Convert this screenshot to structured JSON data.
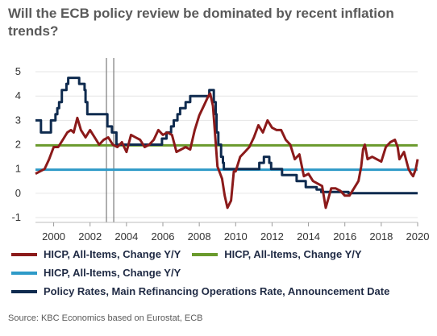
{
  "title": "Will the ECB policy review be dominated by recent inflation trends?",
  "source": "Source: KBC Economics based on Eurostat, ECB",
  "chart_data": {
    "type": "line",
    "xlim": [
      1999.0,
      2020.0
    ],
    "ylim": [
      -1.2,
      5.3
    ],
    "xticks": [
      2000,
      2002,
      2004,
      2006,
      2008,
      2010,
      2012,
      2014,
      2016,
      2018,
      2020
    ],
    "yticks": [
      -1,
      0,
      1,
      2,
      3,
      4,
      5
    ],
    "vlines": [
      2002.9,
      2003.3
    ],
    "series": [
      {
        "name": "HICP, All-Items, Change Y/Y",
        "color": "#8b1a1a",
        "points": [
          [
            1999.0,
            0.8
          ],
          [
            1999.25,
            0.9
          ],
          [
            1999.5,
            1.0
          ],
          [
            1999.75,
            1.4
          ],
          [
            2000.0,
            1.9
          ],
          [
            2000.25,
            1.9
          ],
          [
            2000.5,
            2.2
          ],
          [
            2000.75,
            2.5
          ],
          [
            2000.95,
            2.6
          ],
          [
            2001.1,
            2.5
          ],
          [
            2001.3,
            3.1
          ],
          [
            2001.5,
            2.6
          ],
          [
            2001.75,
            2.3
          ],
          [
            2002.0,
            2.6
          ],
          [
            2002.25,
            2.3
          ],
          [
            2002.5,
            2.0
          ],
          [
            2002.75,
            2.2
          ],
          [
            2003.0,
            2.3
          ],
          [
            2003.25,
            2.0
          ],
          [
            2003.5,
            1.9
          ],
          [
            2003.75,
            2.1
          ],
          [
            2004.0,
            1.7
          ],
          [
            2004.25,
            2.4
          ],
          [
            2004.5,
            2.3
          ],
          [
            2004.75,
            2.2
          ],
          [
            2005.0,
            1.9
          ],
          [
            2005.25,
            2.0
          ],
          [
            2005.5,
            2.2
          ],
          [
            2005.75,
            2.6
          ],
          [
            2006.0,
            2.4
          ],
          [
            2006.25,
            2.5
          ],
          [
            2006.5,
            2.4
          ],
          [
            2006.75,
            1.7
          ],
          [
            2007.0,
            1.8
          ],
          [
            2007.25,
            1.9
          ],
          [
            2007.5,
            1.8
          ],
          [
            2007.75,
            2.6
          ],
          [
            2008.0,
            3.2
          ],
          [
            2008.25,
            3.6
          ],
          [
            2008.5,
            4.0
          ],
          [
            2008.6,
            4.1
          ],
          [
            2008.75,
            3.6
          ],
          [
            2008.9,
            2.1
          ],
          [
            2009.0,
            1.1
          ],
          [
            2009.25,
            0.6
          ],
          [
            2009.4,
            -0.1
          ],
          [
            2009.55,
            -0.6
          ],
          [
            2009.75,
            -0.3
          ],
          [
            2009.9,
            0.9
          ],
          [
            2010.0,
            0.9
          ],
          [
            2010.25,
            1.5
          ],
          [
            2010.5,
            1.7
          ],
          [
            2010.75,
            1.9
          ],
          [
            2011.0,
            2.3
          ],
          [
            2011.25,
            2.8
          ],
          [
            2011.5,
            2.5
          ],
          [
            2011.75,
            3.0
          ],
          [
            2012.0,
            2.7
          ],
          [
            2012.25,
            2.6
          ],
          [
            2012.5,
            2.6
          ],
          [
            2012.75,
            2.2
          ],
          [
            2013.0,
            2.0
          ],
          [
            2013.25,
            1.4
          ],
          [
            2013.5,
            1.6
          ],
          [
            2013.75,
            0.7
          ],
          [
            2014.0,
            0.8
          ],
          [
            2014.25,
            0.5
          ],
          [
            2014.5,
            0.4
          ],
          [
            2014.75,
            0.3
          ],
          [
            2014.95,
            -0.6
          ],
          [
            2015.25,
            0.2
          ],
          [
            2015.5,
            0.2
          ],
          [
            2015.75,
            0.1
          ],
          [
            2016.0,
            -0.1
          ],
          [
            2016.25,
            -0.1
          ],
          [
            2016.5,
            0.2
          ],
          [
            2016.75,
            0.5
          ],
          [
            2016.9,
            1.1
          ],
          [
            2017.0,
            1.8
          ],
          [
            2017.1,
            2.0
          ],
          [
            2017.25,
            1.4
          ],
          [
            2017.5,
            1.5
          ],
          [
            2017.75,
            1.4
          ],
          [
            2018.0,
            1.3
          ],
          [
            2018.25,
            1.9
          ],
          [
            2018.5,
            2.1
          ],
          [
            2018.75,
            2.2
          ],
          [
            2018.9,
            1.9
          ],
          [
            2019.0,
            1.4
          ],
          [
            2019.25,
            1.7
          ],
          [
            2019.5,
            1.0
          ],
          [
            2019.65,
            0.8
          ],
          [
            2019.75,
            0.7
          ],
          [
            2019.9,
            1.0
          ],
          [
            2020.0,
            1.4
          ]
        ]
      },
      {
        "name": "HICP, All-Items, Change Y/Y",
        "color": "#6a9a2c",
        "points": [
          [
            1999.0,
            1.97
          ],
          [
            2020.0,
            1.97
          ]
        ]
      },
      {
        "name": "HICP, All-Items, Change Y/Y",
        "color": "#2e9ac8",
        "points": [
          [
            1999.0,
            0.97
          ],
          [
            2020.0,
            0.97
          ]
        ]
      },
      {
        "name": "Policy Rates, Main Refinancing Operations Rate, Announcement Date",
        "color": "#0f2b4f",
        "step": true,
        "points": [
          [
            1999.0,
            3.0
          ],
          [
            1999.3,
            2.5
          ],
          [
            1999.85,
            3.0
          ],
          [
            2000.1,
            3.25
          ],
          [
            2000.2,
            3.5
          ],
          [
            2000.3,
            3.75
          ],
          [
            2000.45,
            4.25
          ],
          [
            2000.7,
            4.5
          ],
          [
            2000.8,
            4.75
          ],
          [
            2001.4,
            4.5
          ],
          [
            2001.7,
            4.25
          ],
          [
            2001.75,
            3.75
          ],
          [
            2001.85,
            3.25
          ],
          [
            2002.95,
            2.75
          ],
          [
            2003.2,
            2.5
          ],
          [
            2003.45,
            2.0
          ],
          [
            2005.95,
            2.25
          ],
          [
            2006.2,
            2.5
          ],
          [
            2006.45,
            2.75
          ],
          [
            2006.6,
            3.0
          ],
          [
            2006.8,
            3.25
          ],
          [
            2006.95,
            3.5
          ],
          [
            2007.25,
            3.75
          ],
          [
            2007.5,
            4.0
          ],
          [
            2008.55,
            4.25
          ],
          [
            2008.8,
            3.75
          ],
          [
            2008.9,
            3.25
          ],
          [
            2008.95,
            2.5
          ],
          [
            2009.05,
            2.0
          ],
          [
            2009.2,
            1.5
          ],
          [
            2009.3,
            1.25
          ],
          [
            2009.35,
            1.0
          ],
          [
            2011.3,
            1.25
          ],
          [
            2011.55,
            1.5
          ],
          [
            2011.85,
            1.25
          ],
          [
            2011.95,
            1.0
          ],
          [
            2012.55,
            0.75
          ],
          [
            2013.35,
            0.5
          ],
          [
            2013.85,
            0.25
          ],
          [
            2014.45,
            0.15
          ],
          [
            2014.7,
            0.05
          ],
          [
            2016.2,
            0.0
          ],
          [
            2020.0,
            0.0
          ]
        ]
      }
    ],
    "legend": [
      {
        "label": "HICP, All-Items, Change Y/Y",
        "color": "#8b1a1a"
      },
      {
        "label": "HICP, All-Items, Change Y/Y",
        "color": "#6a9a2c"
      },
      {
        "label": "HICP, All-Items, Change Y/Y",
        "color": "#2e9ac8"
      },
      {
        "label": "Policy Rates, Main Refinancing Operations Rate, Announcement Date",
        "color": "#0f2b4f"
      }
    ]
  }
}
